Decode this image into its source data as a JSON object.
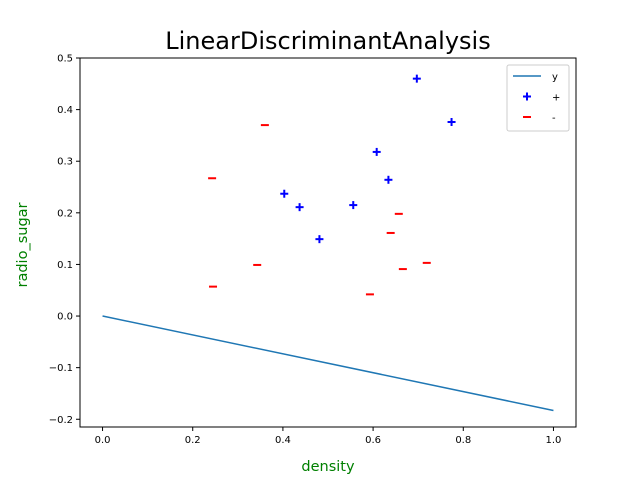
{
  "chart_data": {
    "type": "scatter",
    "title": "LinearDiscriminantAnalysis",
    "xlabel": "density",
    "ylabel": "radio_sugar",
    "label_color": "#008000",
    "xlim": [
      -0.05,
      1.05
    ],
    "ylim": [
      -0.215,
      0.5
    ],
    "xticks": [
      0.0,
      0.2,
      0.4,
      0.6,
      0.8,
      1.0
    ],
    "xtick_labels": [
      "0.0",
      "0.2",
      "0.4",
      "0.6",
      "0.8",
      "1.0"
    ],
    "yticks": [
      -0.2,
      -0.1,
      0.0,
      0.1,
      0.2,
      0.3,
      0.4,
      0.5
    ],
    "ytick_labels": [
      "−0.2",
      "−0.1",
      "0.0",
      "0.1",
      "0.2",
      "0.3",
      "0.4",
      "0.5"
    ],
    "grid": false,
    "legend_position": "top-right",
    "series": [
      {
        "name": "y",
        "kind": "line",
        "color": "#1f77b4",
        "x": [
          0.0,
          1.0
        ],
        "y": [
          0.0,
          -0.183
        ]
      },
      {
        "name": "+",
        "kind": "scatter",
        "marker": "plus",
        "color": "#0000ff",
        "x": [
          0.697,
          0.774,
          0.634,
          0.608,
          0.556,
          0.403,
          0.481,
          0.437
        ],
        "y": [
          0.46,
          0.376,
          0.264,
          0.318,
          0.215,
          0.237,
          0.149,
          0.211
        ]
      },
      {
        "name": "-",
        "kind": "scatter",
        "marker": "minus",
        "color": "#ff0000",
        "x": [
          0.666,
          0.243,
          0.245,
          0.343,
          0.639,
          0.657,
          0.36,
          0.593,
          0.719
        ],
        "y": [
          0.091,
          0.267,
          0.057,
          0.099,
          0.161,
          0.198,
          0.37,
          0.042,
          0.103
        ]
      }
    ]
  }
}
